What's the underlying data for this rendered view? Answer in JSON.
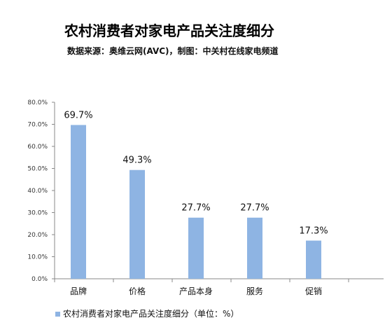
{
  "chart_data": {
    "type": "bar",
    "title": "农村消费者对家电产品关注度细分",
    "subtitle": "数据来源：奥维云网(AVC)，制图：中关村在线家电频道",
    "categories": [
      "品牌",
      "价格",
      "产品本身",
      "服务",
      "促销"
    ],
    "series": [
      {
        "name": "农村消费者对家电产品关注度细分（单位：%）",
        "values": [
          69.7,
          49.3,
          27.7,
          27.7,
          17.3
        ],
        "data_labels": [
          "69.7%",
          "49.3%",
          "27.7%",
          "27.7%",
          "17.3%"
        ]
      }
    ],
    "y_ticks": [
      "0.0%",
      "10.0%",
      "20.0%",
      "30.0%",
      "40.0%",
      "50.0%",
      "60.0%",
      "70.0%",
      "80.0%"
    ],
    "ylim": [
      0,
      80
    ],
    "grid": false,
    "legend_position": "bottom-left",
    "bar_color": "#8EB4E3"
  }
}
